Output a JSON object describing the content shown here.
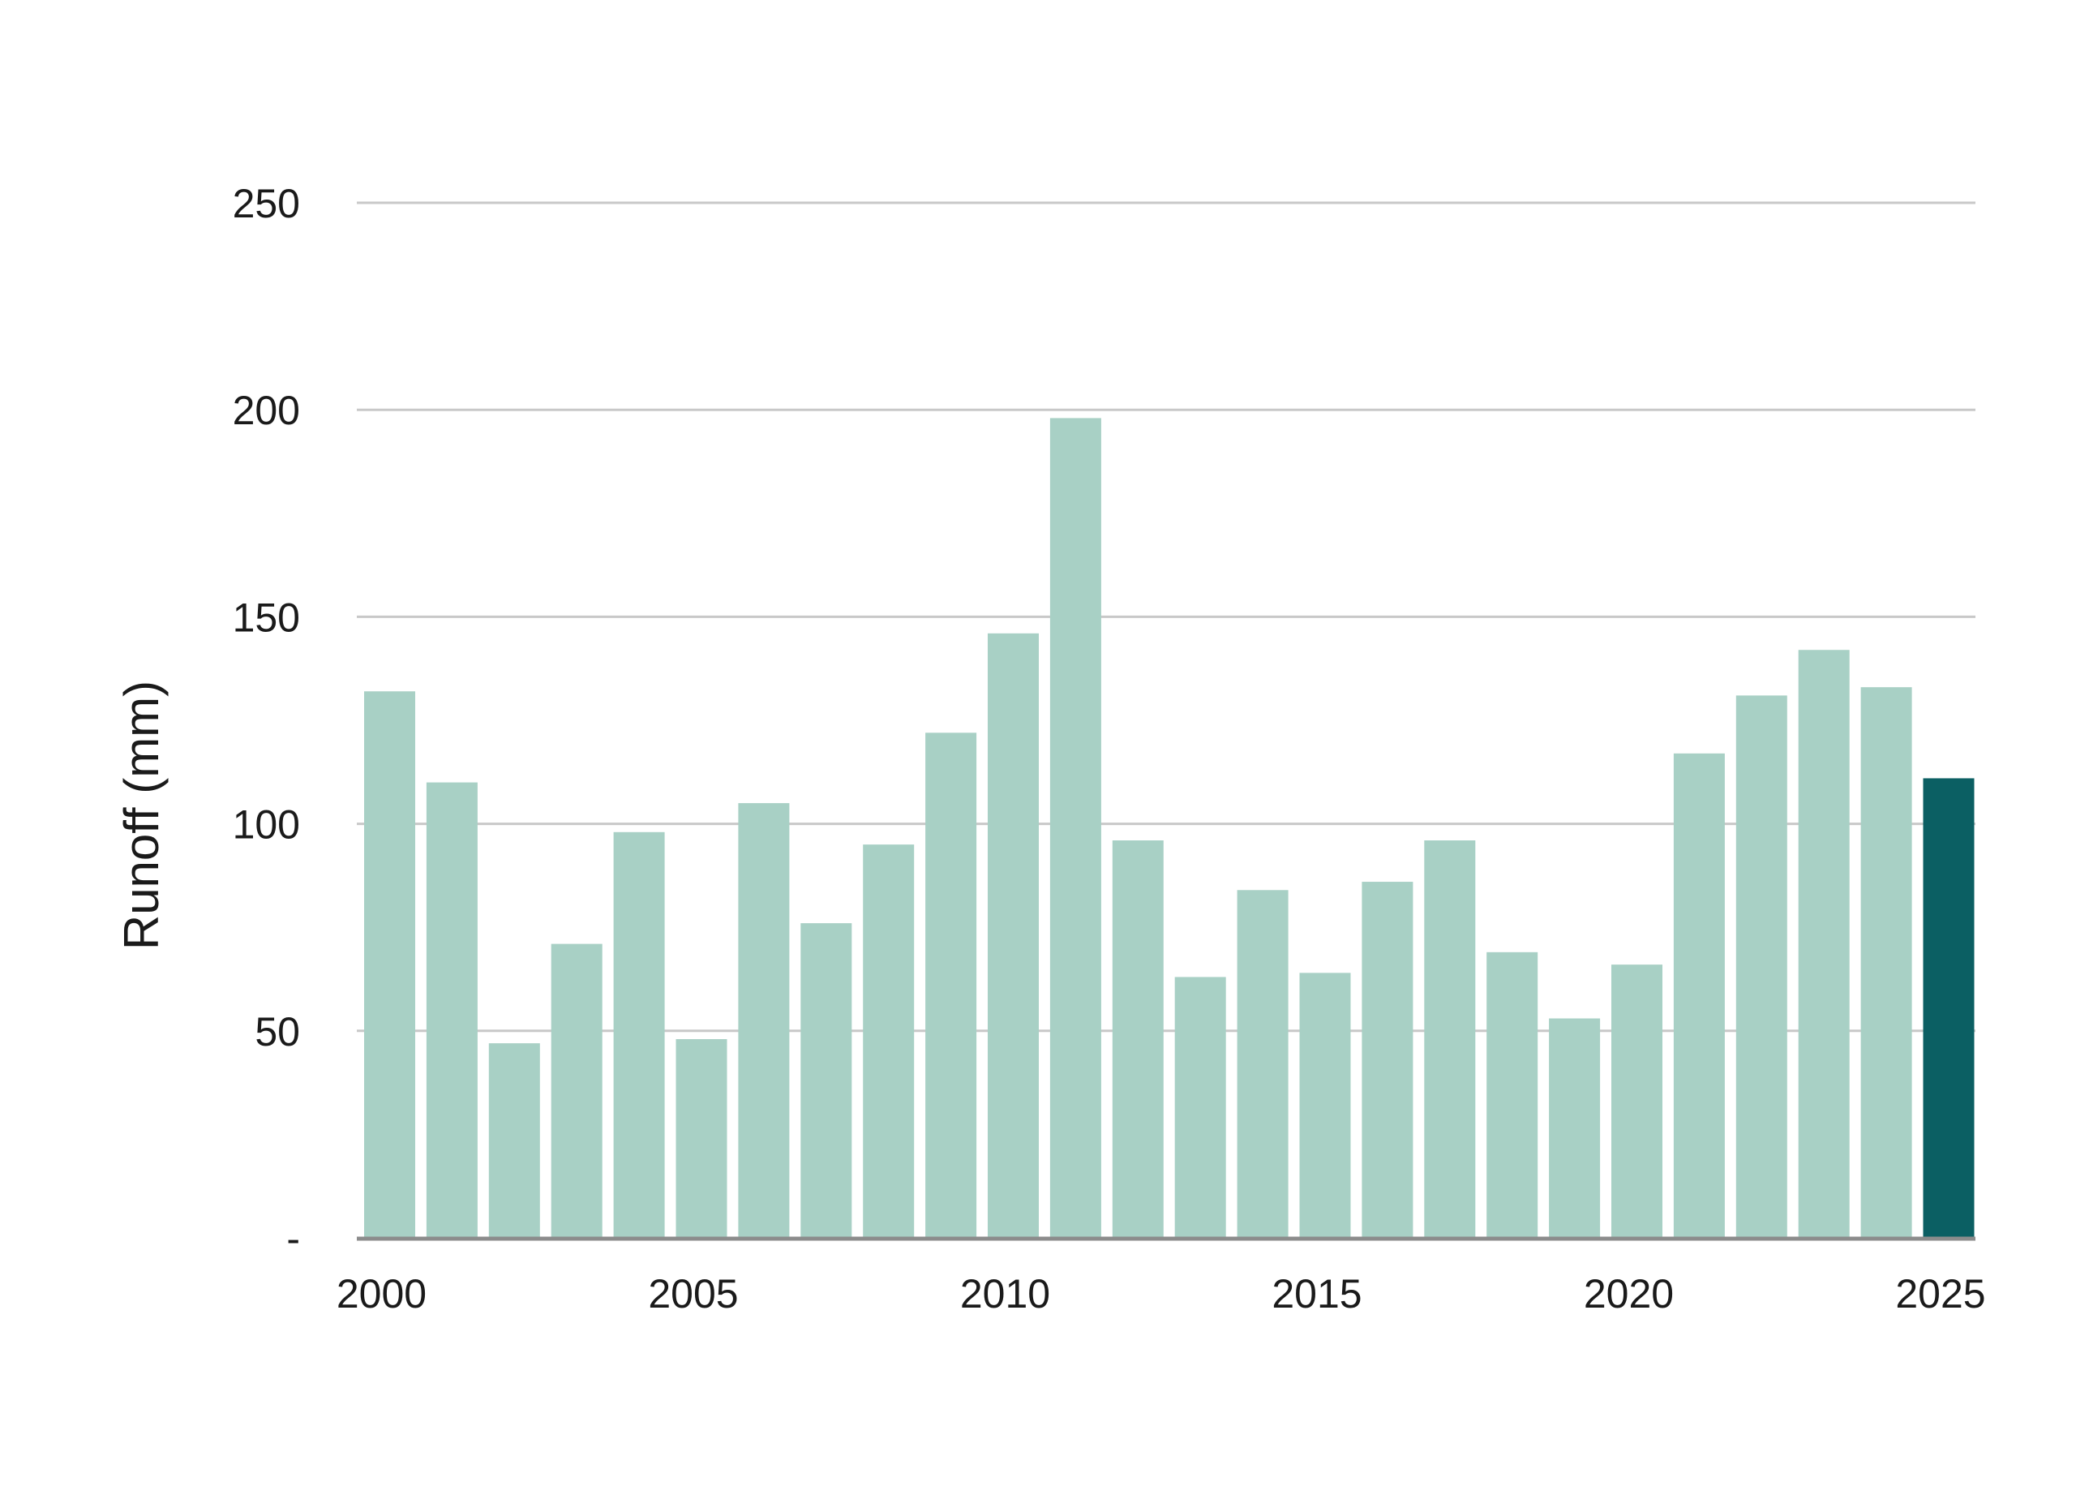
{
  "chart_data": {
    "type": "bar",
    "title": "",
    "xlabel": "",
    "ylabel": "Runoff (mm)",
    "categories": [
      2000,
      2001,
      2002,
      2003,
      2004,
      2005,
      2006,
      2007,
      2008,
      2009,
      2010,
      2011,
      2012,
      2013,
      2014,
      2015,
      2016,
      2017,
      2018,
      2019,
      2020,
      2021,
      2022,
      2023,
      2024,
      2025
    ],
    "values": [
      132,
      110,
      47,
      71,
      98,
      48,
      105,
      76,
      95,
      122,
      146,
      198,
      96,
      63,
      84,
      64,
      86,
      96,
      69,
      53,
      66,
      117,
      131,
      142,
      133,
      111
    ],
    "highlight_category": 2025,
    "ylim": [
      0,
      250
    ],
    "y_ticks": [
      {
        "value": 0,
        "label": "-"
      },
      {
        "value": 50,
        "label": "50"
      },
      {
        "value": 100,
        "label": "100"
      },
      {
        "value": 150,
        "label": "150"
      },
      {
        "value": 200,
        "label": "200"
      },
      {
        "value": 250,
        "label": "250"
      }
    ],
    "x_tick_labels": [
      "2000",
      "2005",
      "2010",
      "2015",
      "2020",
      "2025"
    ],
    "grid": true,
    "legend": "none",
    "colors": {
      "bar": "#a8d0c5",
      "highlight": "#0b5f63",
      "grid": "#c8c8c8",
      "axis": "#8c8c8c"
    }
  }
}
